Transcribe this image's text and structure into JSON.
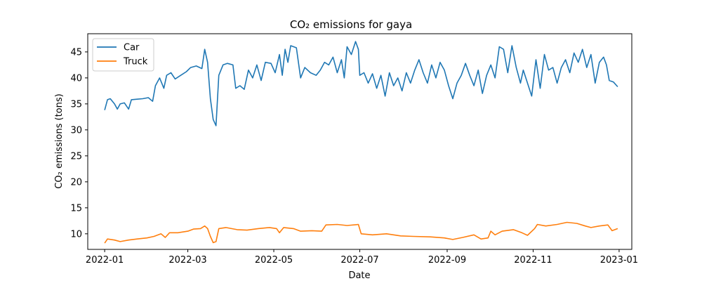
{
  "chart_data": {
    "type": "line",
    "title": "CO₂ emissions for gaya",
    "xlabel": "Date",
    "ylabel": "CO₂ emissions (tons)",
    "x_range": [
      "2021-12-20",
      "2023-01-10"
    ],
    "ylim": [
      7,
      48.5
    ],
    "x_ticks": [
      "2022-01",
      "2022-03",
      "2022-05",
      "2022-07",
      "2022-09",
      "2022-11",
      "2023-01"
    ],
    "y_ticks": [
      10,
      15,
      20,
      25,
      30,
      35,
      40,
      45
    ],
    "grid": false,
    "legend": "top-left",
    "series": [
      {
        "name": "Car",
        "color": "#1f77b4",
        "points": [
          [
            "2022-01-01",
            33.8
          ],
          [
            "2022-01-03",
            35.8
          ],
          [
            "2022-01-05",
            36.0
          ],
          [
            "2022-01-08",
            35.0
          ],
          [
            "2022-01-10",
            34.0
          ],
          [
            "2022-01-12",
            35.0
          ],
          [
            "2022-01-15",
            35.2
          ],
          [
            "2022-01-18",
            34.0
          ],
          [
            "2022-01-20",
            35.8
          ],
          [
            "2022-01-24",
            35.9
          ],
          [
            "2022-01-28",
            36.0
          ],
          [
            "2022-02-01",
            36.2
          ],
          [
            "2022-02-04",
            35.5
          ],
          [
            "2022-02-06",
            38.5
          ],
          [
            "2022-02-09",
            40.0
          ],
          [
            "2022-02-12",
            38.0
          ],
          [
            "2022-02-14",
            40.5
          ],
          [
            "2022-02-17",
            41.0
          ],
          [
            "2022-02-20",
            39.8
          ],
          [
            "2022-02-24",
            40.5
          ],
          [
            "2022-02-28",
            41.2
          ],
          [
            "2022-03-03",
            42.0
          ],
          [
            "2022-03-07",
            42.3
          ],
          [
            "2022-03-11",
            41.8
          ],
          [
            "2022-03-13",
            45.5
          ],
          [
            "2022-03-15",
            43.0
          ],
          [
            "2022-03-17",
            36.0
          ],
          [
            "2022-03-19",
            32.0
          ],
          [
            "2022-03-21",
            30.8
          ],
          [
            "2022-03-23",
            40.5
          ],
          [
            "2022-03-26",
            42.5
          ],
          [
            "2022-03-29",
            42.8
          ],
          [
            "2022-04-02",
            42.5
          ],
          [
            "2022-04-04",
            38.0
          ],
          [
            "2022-04-07",
            38.5
          ],
          [
            "2022-04-10",
            37.8
          ],
          [
            "2022-04-13",
            41.5
          ],
          [
            "2022-04-16",
            40.0
          ],
          [
            "2022-04-19",
            42.5
          ],
          [
            "2022-04-22",
            39.5
          ],
          [
            "2022-04-25",
            43.0
          ],
          [
            "2022-04-29",
            42.8
          ],
          [
            "2022-05-02",
            41.0
          ],
          [
            "2022-05-05",
            44.5
          ],
          [
            "2022-05-07",
            40.5
          ],
          [
            "2022-05-09",
            45.5
          ],
          [
            "2022-05-11",
            43.0
          ],
          [
            "2022-05-13",
            46.2
          ],
          [
            "2022-05-17",
            45.8
          ],
          [
            "2022-05-20",
            40.0
          ],
          [
            "2022-05-23",
            42.0
          ],
          [
            "2022-05-27",
            41.0
          ],
          [
            "2022-05-31",
            40.5
          ],
          [
            "2022-06-03",
            41.5
          ],
          [
            "2022-06-06",
            43.0
          ],
          [
            "2022-06-09",
            42.5
          ],
          [
            "2022-06-12",
            44.0
          ],
          [
            "2022-06-15",
            41.0
          ],
          [
            "2022-06-18",
            43.5
          ],
          [
            "2022-06-20",
            40.0
          ],
          [
            "2022-06-22",
            46.0
          ],
          [
            "2022-06-25",
            44.5
          ],
          [
            "2022-06-28",
            47.0
          ],
          [
            "2022-06-30",
            45.5
          ],
          [
            "2022-07-01",
            40.5
          ],
          [
            "2022-07-04",
            41.0
          ],
          [
            "2022-07-07",
            39.0
          ],
          [
            "2022-07-10",
            40.8
          ],
          [
            "2022-07-13",
            38.0
          ],
          [
            "2022-07-16",
            40.5
          ],
          [
            "2022-07-19",
            36.5
          ],
          [
            "2022-07-22",
            41.0
          ],
          [
            "2022-07-25",
            38.5
          ],
          [
            "2022-07-28",
            40.0
          ],
          [
            "2022-07-31",
            37.5
          ],
          [
            "2022-08-03",
            41.0
          ],
          [
            "2022-08-06",
            39.0
          ],
          [
            "2022-08-09",
            41.5
          ],
          [
            "2022-08-12",
            43.5
          ],
          [
            "2022-08-15",
            41.0
          ],
          [
            "2022-08-18",
            39.0
          ],
          [
            "2022-08-21",
            42.5
          ],
          [
            "2022-08-24",
            40.0
          ],
          [
            "2022-08-27",
            43.0
          ],
          [
            "2022-08-30",
            41.5
          ],
          [
            "2022-09-02",
            38.5
          ],
          [
            "2022-09-05",
            36.0
          ],
          [
            "2022-09-08",
            39.0
          ],
          [
            "2022-09-11",
            40.5
          ],
          [
            "2022-09-14",
            42.8
          ],
          [
            "2022-09-17",
            40.5
          ],
          [
            "2022-09-20",
            38.5
          ],
          [
            "2022-09-23",
            41.5
          ],
          [
            "2022-09-26",
            37.0
          ],
          [
            "2022-09-29",
            40.5
          ],
          [
            "2022-10-02",
            42.5
          ],
          [
            "2022-10-05",
            40.0
          ],
          [
            "2022-10-08",
            46.0
          ],
          [
            "2022-10-11",
            45.5
          ],
          [
            "2022-10-14",
            41.0
          ],
          [
            "2022-10-17",
            46.2
          ],
          [
            "2022-10-20",
            42.0
          ],
          [
            "2022-10-23",
            39.0
          ],
          [
            "2022-10-25",
            41.5
          ],
          [
            "2022-10-28",
            39.0
          ],
          [
            "2022-10-31",
            36.5
          ],
          [
            "2022-11-03",
            43.5
          ],
          [
            "2022-11-06",
            38.0
          ],
          [
            "2022-11-09",
            44.5
          ],
          [
            "2022-11-12",
            41.5
          ],
          [
            "2022-11-15",
            42.0
          ],
          [
            "2022-11-18",
            39.0
          ],
          [
            "2022-11-21",
            42.0
          ],
          [
            "2022-11-24",
            43.5
          ],
          [
            "2022-11-27",
            41.0
          ],
          [
            "2022-11-30",
            44.8
          ],
          [
            "2022-12-03",
            43.0
          ],
          [
            "2022-12-06",
            45.5
          ],
          [
            "2022-12-09",
            42.0
          ],
          [
            "2022-12-12",
            44.5
          ],
          [
            "2022-12-15",
            39.0
          ],
          [
            "2022-12-18",
            43.0
          ],
          [
            "2022-12-21",
            44.0
          ],
          [
            "2022-12-23",
            42.5
          ],
          [
            "2022-12-25",
            39.5
          ],
          [
            "2022-12-28",
            39.2
          ],
          [
            "2022-12-31",
            38.3
          ]
        ]
      },
      {
        "name": "Truck",
        "color": "#ff7f0e",
        "points": [
          [
            "2022-01-01",
            8.2
          ],
          [
            "2022-01-03",
            9.0
          ],
          [
            "2022-01-08",
            8.8
          ],
          [
            "2022-01-12",
            8.5
          ],
          [
            "2022-01-18",
            8.8
          ],
          [
            "2022-01-24",
            9.0
          ],
          [
            "2022-01-31",
            9.2
          ],
          [
            "2022-02-05",
            9.5
          ],
          [
            "2022-02-10",
            10.0
          ],
          [
            "2022-02-13",
            9.3
          ],
          [
            "2022-02-16",
            10.2
          ],
          [
            "2022-02-22",
            10.2
          ],
          [
            "2022-03-01",
            10.5
          ],
          [
            "2022-03-05",
            10.9
          ],
          [
            "2022-03-10",
            11.0
          ],
          [
            "2022-03-13",
            11.5
          ],
          [
            "2022-03-15",
            11.0
          ],
          [
            "2022-03-17",
            9.5
          ],
          [
            "2022-03-19",
            8.3
          ],
          [
            "2022-03-21",
            8.5
          ],
          [
            "2022-03-23",
            11.0
          ],
          [
            "2022-03-28",
            11.2
          ],
          [
            "2022-04-05",
            10.8
          ],
          [
            "2022-04-12",
            10.7
          ],
          [
            "2022-04-20",
            11.0
          ],
          [
            "2022-04-28",
            11.2
          ],
          [
            "2022-05-03",
            11.0
          ],
          [
            "2022-05-05",
            10.2
          ],
          [
            "2022-05-08",
            11.2
          ],
          [
            "2022-05-15",
            11.0
          ],
          [
            "2022-05-20",
            10.5
          ],
          [
            "2022-05-28",
            10.6
          ],
          [
            "2022-06-04",
            10.5
          ],
          [
            "2022-06-07",
            11.7
          ],
          [
            "2022-06-15",
            11.8
          ],
          [
            "2022-06-22",
            11.6
          ],
          [
            "2022-06-30",
            11.8
          ],
          [
            "2022-07-02",
            10.0
          ],
          [
            "2022-07-10",
            9.8
          ],
          [
            "2022-07-20",
            10.0
          ],
          [
            "2022-07-30",
            9.6
          ],
          [
            "2022-08-08",
            9.5
          ],
          [
            "2022-08-20",
            9.4
          ],
          [
            "2022-08-30",
            9.2
          ],
          [
            "2022-09-05",
            8.9
          ],
          [
            "2022-09-12",
            9.3
          ],
          [
            "2022-09-20",
            9.8
          ],
          [
            "2022-09-25",
            9.0
          ],
          [
            "2022-09-30",
            9.2
          ],
          [
            "2022-10-02",
            10.5
          ],
          [
            "2022-10-05",
            9.8
          ],
          [
            "2022-10-10",
            10.5
          ],
          [
            "2022-10-18",
            10.8
          ],
          [
            "2022-10-24",
            10.2
          ],
          [
            "2022-10-28",
            9.7
          ],
          [
            "2022-11-02",
            11.0
          ],
          [
            "2022-11-04",
            11.8
          ],
          [
            "2022-11-10",
            11.5
          ],
          [
            "2022-11-18",
            11.8
          ],
          [
            "2022-11-25",
            12.2
          ],
          [
            "2022-12-02",
            12.0
          ],
          [
            "2022-12-08",
            11.5
          ],
          [
            "2022-12-12",
            11.2
          ],
          [
            "2022-12-18",
            11.5
          ],
          [
            "2022-12-24",
            11.7
          ],
          [
            "2022-12-27",
            10.6
          ],
          [
            "2022-12-31",
            11.0
          ]
        ]
      }
    ]
  }
}
